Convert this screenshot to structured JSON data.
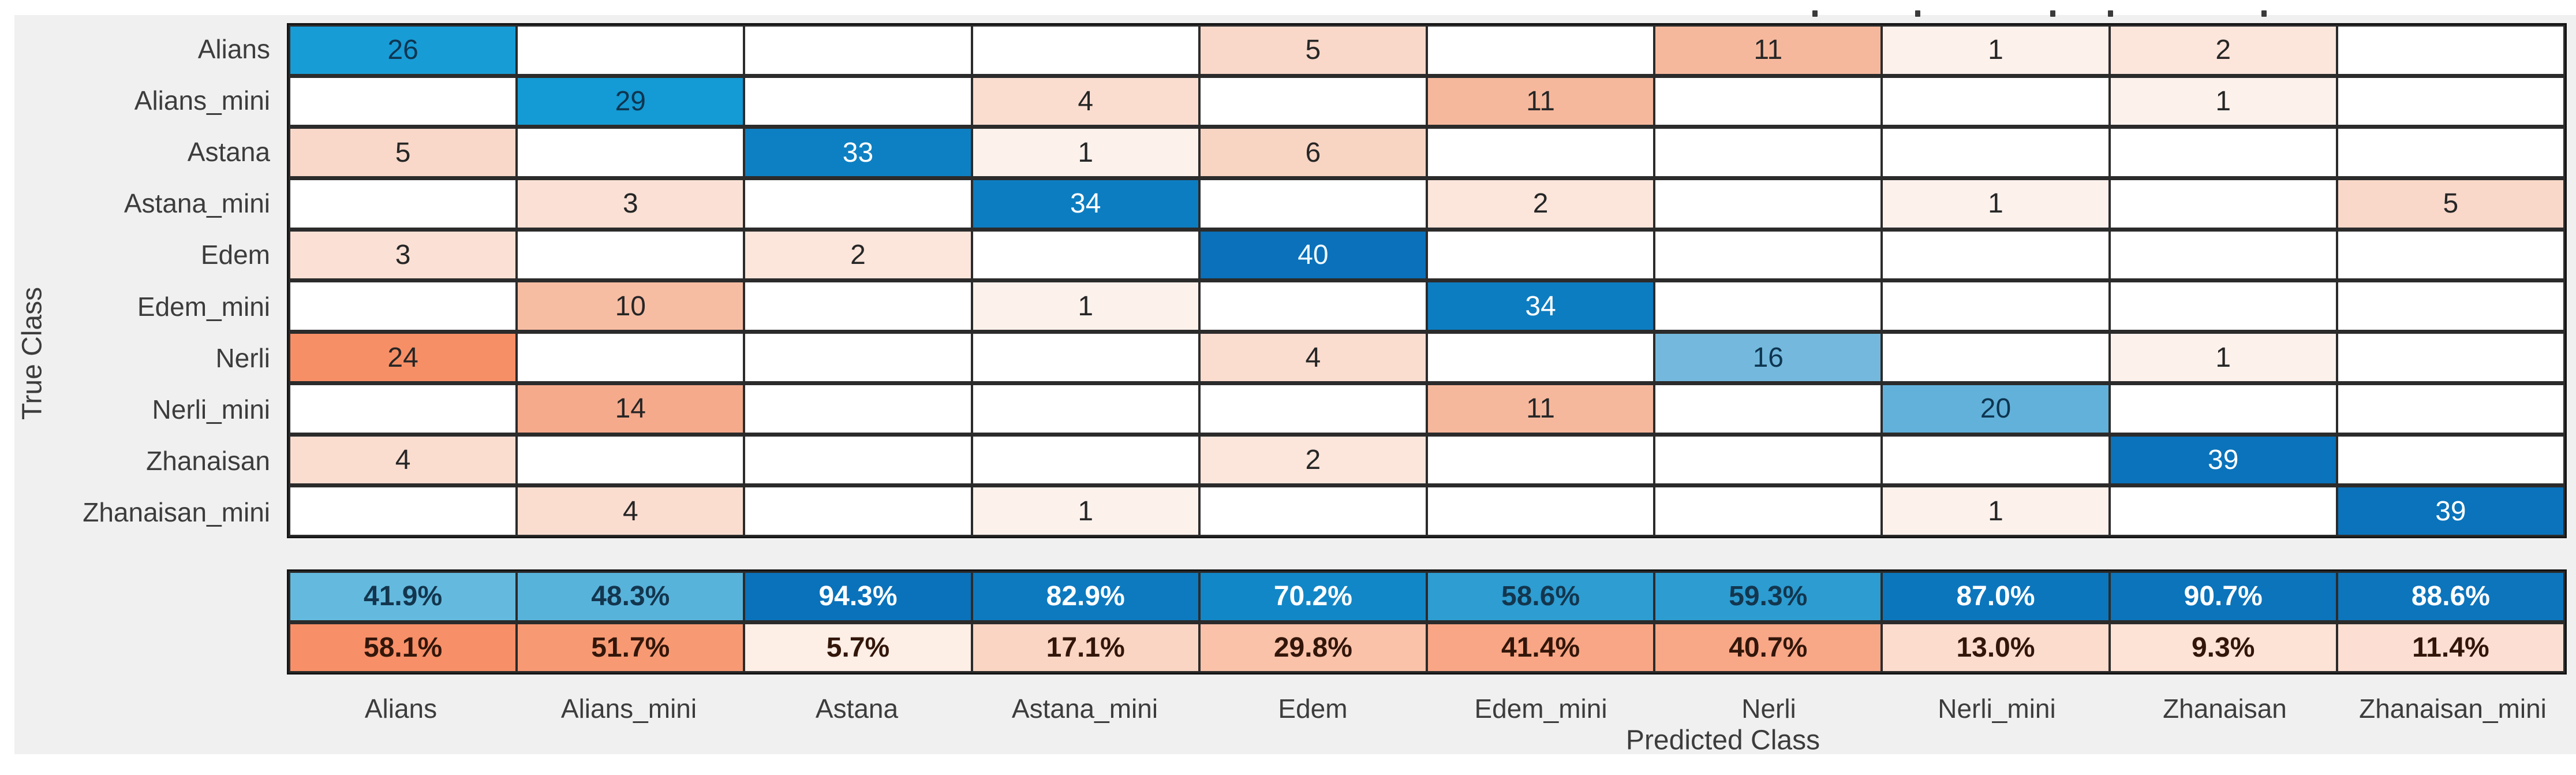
{
  "figure": {
    "background_color": "#f0f0f0",
    "outer_background_color": "#ffffff",
    "grid_line_color": "#2b2b2b"
  },
  "chart_data": {
    "type": "heatmap",
    "subtype": "confusion-matrix",
    "title": "",
    "xlabel": "Predicted Class",
    "ylabel": "True Class",
    "classes": [
      "Alians",
      "Alians_mini",
      "Astana",
      "Astana_mini",
      "Edem",
      "Edem_mini",
      "Nerli",
      "Nerli_mini",
      "Zhanaisan",
      "Zhanaisan_mini"
    ],
    "matrix": [
      [
        26,
        0,
        0,
        0,
        5,
        0,
        11,
        1,
        2,
        0
      ],
      [
        0,
        29,
        0,
        4,
        0,
        11,
        0,
        0,
        1,
        0
      ],
      [
        5,
        0,
        33,
        1,
        6,
        0,
        0,
        0,
        0,
        0
      ],
      [
        0,
        3,
        0,
        34,
        0,
        2,
        0,
        1,
        0,
        5
      ],
      [
        3,
        0,
        2,
        0,
        40,
        0,
        0,
        0,
        0,
        0
      ],
      [
        0,
        10,
        0,
        1,
        0,
        34,
        0,
        0,
        0,
        0
      ],
      [
        24,
        0,
        0,
        0,
        4,
        0,
        16,
        0,
        1,
        0
      ],
      [
        0,
        14,
        0,
        0,
        0,
        11,
        0,
        20,
        0,
        0
      ],
      [
        4,
        0,
        0,
        0,
        2,
        0,
        0,
        0,
        39,
        0
      ],
      [
        0,
        4,
        0,
        1,
        0,
        0,
        0,
        1,
        0,
        39
      ]
    ],
    "column_summary": {
      "positive_row": [
        "41.9%",
        "48.3%",
        "94.3%",
        "82.9%",
        "70.2%",
        "58.6%",
        "59.3%",
        "87.0%",
        "90.7%",
        "88.6%"
      ],
      "negative_row": [
        "58.1%",
        "51.7%",
        "5.7%",
        "17.1%",
        "29.8%",
        "41.4%",
        "40.7%",
        "13.0%",
        "9.3%",
        "11.4%"
      ]
    },
    "legend": "none",
    "grid": "on"
  },
  "styles": {
    "diagonal_colors": {
      "16": {
        "bg": "#74b9dd",
        "fg": "#0e3550"
      },
      "20": {
        "bg": "#62b1da",
        "fg": "#0e3550"
      },
      "26": {
        "bg": "#189cd6",
        "fg": "#0e3550"
      },
      "29": {
        "bg": "#149ad4",
        "fg": "#0e3550"
      },
      "33": {
        "bg": "#0d80c3",
        "fg": "#ffffff"
      },
      "34": {
        "bg": "#0d7dc1",
        "fg": "#ffffff"
      },
      "39": {
        "bg": "#0a73bb",
        "fg": "#ffffff"
      },
      "40": {
        "bg": "#0a71ba",
        "fg": "#eefaff"
      }
    },
    "offdiag_colors": {
      "1": "#fdf1ec",
      "2": "#fce5db",
      "3": "#fbe1d5",
      "4": "#fbddd0",
      "5": "#f9d8c9",
      "6": "#f8d4c3",
      "10": "#f7bda3",
      "11": "#f6b89d",
      "14": "#f5aa8c",
      "24": "#f78f66"
    },
    "offdiag_text_color": "#262626",
    "empty_cell_color": "#ffffff",
    "summary_positive": [
      {
        "bg": "#64bade",
        "fg": "#13364e"
      },
      {
        "bg": "#58b3db",
        "fg": "#13364e"
      },
      {
        "bg": "#0a72ba",
        "fg": "#ffffff"
      },
      {
        "bg": "#0d7ac0",
        "fg": "#ffffff"
      },
      {
        "bg": "#1287c7",
        "fg": "#ffffff"
      },
      {
        "bg": "#2d9dd2",
        "fg": "#13364e"
      },
      {
        "bg": "#2c9cd1",
        "fg": "#13364e"
      },
      {
        "bg": "#0c76bd",
        "fg": "#ffffff"
      },
      {
        "bg": "#0b74bb",
        "fg": "#ffffff"
      },
      {
        "bg": "#0c75bc",
        "fg": "#ffffff"
      }
    ],
    "summary_negative": [
      {
        "bg": "#f78f68",
        "fg": "#33160a"
      },
      {
        "bg": "#f79a74",
        "fg": "#33160a"
      },
      {
        "bg": "#fdeee6",
        "fg": "#33160a"
      },
      {
        "bg": "#fbd5c3",
        "fg": "#33160a"
      },
      {
        "bg": "#f9c2a9",
        "fg": "#33160a"
      },
      {
        "bg": "#f8a685",
        "fg": "#33160a"
      },
      {
        "bg": "#f8a787",
        "fg": "#33160a"
      },
      {
        "bg": "#fcdccd",
        "fg": "#33160a"
      },
      {
        "bg": "#fde2d6",
        "fg": "#33160a"
      },
      {
        "bg": "#fcdfd2",
        "fg": "#33160a"
      }
    ]
  }
}
